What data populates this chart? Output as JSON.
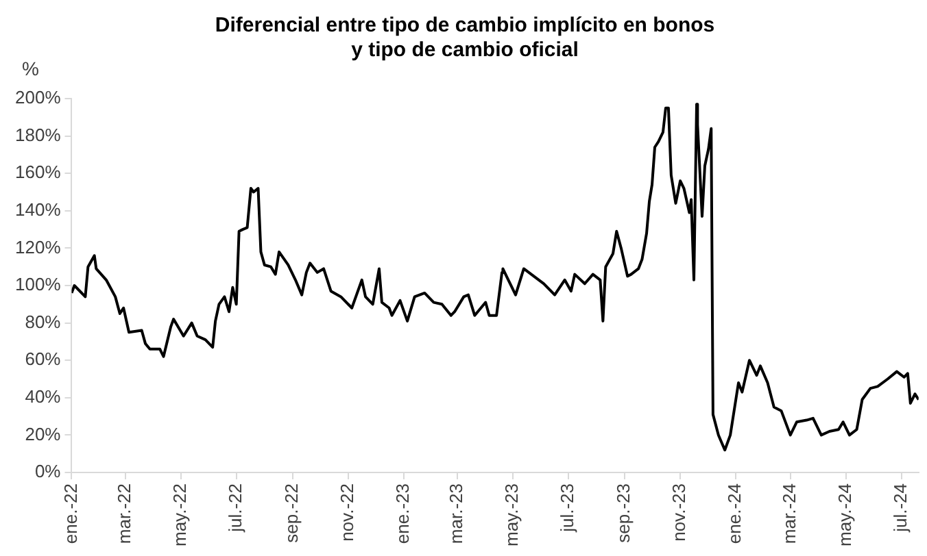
{
  "chart_data": {
    "type": "line",
    "title": "Diferencial entre tipo de cambio implícito en bonos\ny tipo de cambio oficial",
    "ylabel": "%",
    "x": [
      "2022-01-01",
      "2022-01-04",
      "2022-01-16",
      "2022-01-19",
      "2022-01-26",
      "2022-01-28",
      "2022-02-08",
      "2022-02-18",
      "2022-02-23",
      "2022-02-27",
      "2022-03-05",
      "2022-03-19",
      "2022-03-23",
      "2022-03-28",
      "2022-04-08",
      "2022-04-12",
      "2022-04-20",
      "2022-04-23",
      "2022-05-04",
      "2022-05-13",
      "2022-05-19",
      "2022-05-28",
      "2022-06-05",
      "2022-06-08",
      "2022-06-12",
      "2022-06-18",
      "2022-06-23",
      "2022-06-27",
      "2022-07-01",
      "2022-07-04",
      "2022-07-08",
      "2022-07-13",
      "2022-07-17",
      "2022-07-20",
      "2022-07-25",
      "2022-07-28",
      "2022-08-01",
      "2022-08-08",
      "2022-08-13",
      "2022-08-17",
      "2022-08-27",
      "2022-09-04",
      "2022-09-11",
      "2022-09-16",
      "2022-09-20",
      "2022-09-28",
      "2022-10-05",
      "2022-10-13",
      "2022-10-24",
      "2022-11-05",
      "2022-11-16",
      "2022-11-20",
      "2022-11-28",
      "2022-12-05",
      "2022-12-08",
      "2022-12-16",
      "2022-12-19",
      "2022-12-28",
      "2023-01-05",
      "2023-01-13",
      "2023-01-24",
      "2023-02-03",
      "2023-02-12",
      "2023-02-22",
      "2023-02-26",
      "2023-03-08",
      "2023-03-13",
      "2023-03-20",
      "2023-04-01",
      "2023-04-05",
      "2023-04-13",
      "2023-04-19",
      "2023-04-20",
      "2023-04-26",
      "2023-05-04",
      "2023-05-13",
      "2023-05-24",
      "2023-06-04",
      "2023-06-16",
      "2023-06-27",
      "2023-07-04",
      "2023-07-08",
      "2023-07-19",
      "2023-07-28",
      "2023-08-05",
      "2023-08-08",
      "2023-08-11",
      "2023-08-19",
      "2023-08-23",
      "2023-08-28",
      "2023-09-04",
      "2023-09-08",
      "2023-09-16",
      "2023-09-20",
      "2023-09-25",
      "2023-09-28",
      "2023-10-01",
      "2023-10-04",
      "2023-10-08",
      "2023-10-13",
      "2023-10-16",
      "2023-10-19",
      "2023-10-22",
      "2023-10-27",
      "2023-11-01",
      "2023-11-05",
      "2023-11-11",
      "2023-11-13",
      "2023-11-16",
      "2023-11-19",
      "2023-11-20",
      "2023-11-25",
      "2023-11-28",
      "2023-12-02",
      "2023-12-05",
      "2023-12-07",
      "2023-12-13",
      "2023-12-20",
      "2023-12-26",
      "2024-01-04",
      "2024-01-08",
      "2024-01-16",
      "2024-01-24",
      "2024-01-28",
      "2024-02-05",
      "2024-02-12",
      "2024-02-20",
      "2024-03-01",
      "2024-03-08",
      "2024-03-19",
      "2024-03-26",
      "2024-04-04",
      "2024-04-13",
      "2024-04-23",
      "2024-04-28",
      "2024-05-05",
      "2024-05-13",
      "2024-05-19",
      "2024-05-28",
      "2024-06-05",
      "2024-06-16",
      "2024-06-26",
      "2024-07-04",
      "2024-07-08",
      "2024-07-11",
      "2024-07-16",
      "2024-07-20"
    ],
    "series": [
      {
        "color": "#000000",
        "values": [
          96,
          100,
          94,
          110,
          116,
          109,
          103,
          94,
          85,
          88,
          75,
          76,
          69,
          66,
          66,
          62,
          78,
          82,
          73,
          80,
          73,
          71,
          67,
          81,
          90,
          94,
          86,
          99,
          90,
          129,
          130,
          131,
          152,
          150,
          152,
          118,
          111,
          110,
          106,
          118,
          111,
          103,
          95,
          107,
          112,
          107,
          109,
          97,
          94,
          88,
          103,
          94,
          90,
          109,
          91,
          88,
          84,
          92,
          81,
          94,
          96,
          91,
          90,
          84,
          86,
          94,
          95,
          84,
          91,
          84,
          84,
          107,
          109,
          103,
          95,
          109,
          105,
          101,
          95,
          103,
          97,
          106,
          101,
          106,
          103,
          81,
          110,
          117,
          129,
          120,
          105,
          106,
          109,
          114,
          128,
          145,
          154,
          174,
          177,
          182,
          195,
          195,
          159,
          144,
          156,
          152,
          139,
          146,
          103,
          197,
          186,
          137,
          164,
          173,
          184,
          31,
          20,
          12,
          20,
          48,
          43,
          60,
          52,
          57,
          48,
          35,
          33,
          20,
          27,
          28,
          29,
          20,
          22,
          23,
          27,
          20,
          23,
          39,
          45,
          46,
          50,
          54,
          51,
          53,
          37,
          42,
          39
        ]
      }
    ],
    "xlim": [
      "2022-01-01",
      "2024-07-20"
    ],
    "xticks": [
      {
        "value": "2022-01-01",
        "label": "ene.-22"
      },
      {
        "value": "2022-03-01",
        "label": "mar.-22"
      },
      {
        "value": "2022-05-01",
        "label": "may.-22"
      },
      {
        "value": "2022-07-01",
        "label": "jul.-22"
      },
      {
        "value": "2022-09-01",
        "label": "sep.-22"
      },
      {
        "value": "2022-11-01",
        "label": "nov.-22"
      },
      {
        "value": "2023-01-01",
        "label": "ene.-23"
      },
      {
        "value": "2023-03-01",
        "label": "mar.-23"
      },
      {
        "value": "2023-05-01",
        "label": "may.-23"
      },
      {
        "value": "2023-07-01",
        "label": "jul.-23"
      },
      {
        "value": "2023-09-01",
        "label": "sep.-23"
      },
      {
        "value": "2023-11-01",
        "label": "nov.-23"
      },
      {
        "value": "2024-01-01",
        "label": "ene.-24"
      },
      {
        "value": "2024-03-01",
        "label": "mar.-24"
      },
      {
        "value": "2024-05-01",
        "label": "may.-24"
      },
      {
        "value": "2024-07-01",
        "label": "jul.-24"
      }
    ],
    "ylim": [
      0,
      200
    ],
    "yticks": [
      {
        "value": 0,
        "label": "0%"
      },
      {
        "value": 20,
        "label": "20%"
      },
      {
        "value": 40,
        "label": "40%"
      },
      {
        "value": 60,
        "label": "60%"
      },
      {
        "value": 80,
        "label": "80%"
      },
      {
        "value": 100,
        "label": "100%"
      },
      {
        "value": 120,
        "label": "120%"
      },
      {
        "value": 140,
        "label": "140%"
      },
      {
        "value": 160,
        "label": "160%"
      },
      {
        "value": 180,
        "label": "180%"
      },
      {
        "value": 200,
        "label": "200%"
      }
    ],
    "grid": false,
    "legend": false,
    "marker": "none",
    "line_style": "solid"
  }
}
